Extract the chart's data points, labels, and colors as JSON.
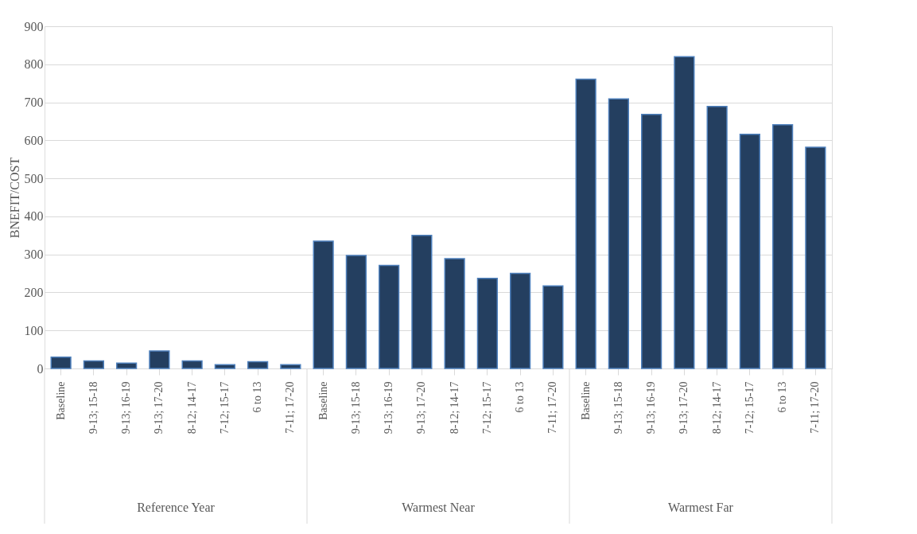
{
  "chart_data": {
    "type": "bar",
    "ylabel": "BNEFIT/COST",
    "categories": [
      "Baseline",
      "9-13; 15-18",
      "9-13; 16-19",
      "9-13; 17-20",
      "8-12; 14-17",
      "7-12; 15-17",
      "6 to 13",
      "7-11; 17-20",
      "Baseline",
      "9-13; 15-18",
      "9-13; 16-19",
      "9-13; 17-20",
      "8-12; 14-17",
      "7-12; 15-17",
      "6 to 13",
      "7-11; 17-20",
      "Baseline",
      "9-13; 15-18",
      "9-13; 16-19",
      "9-13; 17-20",
      "8-12; 14-17",
      "7-12; 15-17",
      "6 to 13",
      "7-11; 17-20"
    ],
    "values": [
      30,
      20,
      14,
      46,
      20,
      10,
      18,
      10,
      335,
      297,
      271,
      350,
      289,
      237,
      250,
      217,
      761,
      709,
      668,
      820,
      689,
      616,
      641,
      582
    ],
    "color": "#243f60",
    "ylim": [
      0,
      900
    ],
    "yticks": [
      0,
      100,
      200,
      300,
      400,
      500,
      600,
      700,
      800,
      900
    ],
    "grid": "y",
    "annotations": [
      "Reference Year",
      "Warmest Near",
      "Warmest Far"
    ]
  }
}
